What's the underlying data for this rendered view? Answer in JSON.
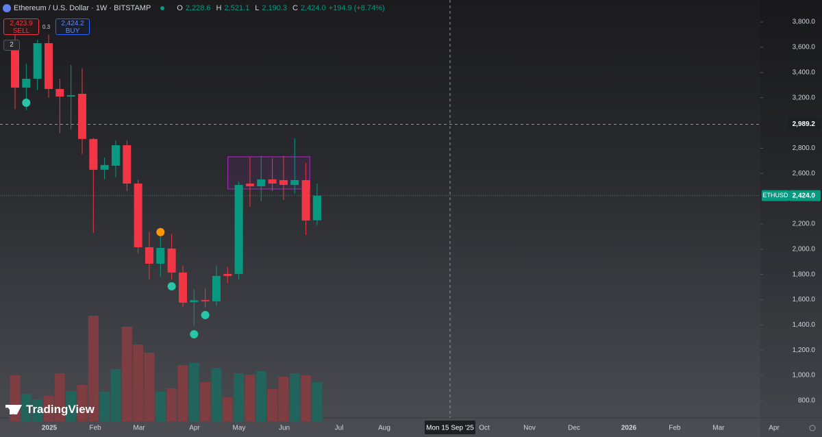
{
  "header": {
    "symbol": "Ethereum / U.S. Dollar · 1W · BITSTAMP",
    "ohlc": [
      {
        "key": "O",
        "value": "2,228.6"
      },
      {
        "key": "H",
        "value": "2,521.1"
      },
      {
        "key": "L",
        "value": "2,190.3"
      },
      {
        "key": "C",
        "value": "2,424.0"
      }
    ],
    "change": "+194.9 (+8.74%)"
  },
  "trade": {
    "sell_price": "2,423.9",
    "sell": "SELL",
    "spread": "0.3",
    "buy_price": "2,424.2",
    "buy": "BUY"
  },
  "indicator_toggle": "2",
  "brand": "TradingView",
  "chart_data": {
    "type": "candlestick",
    "series": {
      "name": "ETHUSD",
      "up_color": "#089981",
      "down_color": "#f23645",
      "open": [
        3621,
        3280,
        3350,
        3632,
        3269,
        3210,
        3231,
        2873,
        2629,
        2661,
        2824,
        2520,
        2015,
        1885,
        2005,
        1815,
        1580,
        1597,
        1587,
        1804,
        1804,
        2520,
        2498,
        2553,
        2547,
        2509,
        2547,
        2228.6
      ],
      "high": [
        3760,
        3470,
        3660,
        3700,
        3350,
        3460,
        3432,
        2880,
        2726,
        2862,
        2862,
        2550,
        2140,
        2100,
        2120,
        1870,
        1684,
        1690,
        1870,
        1858,
        2535,
        2726,
        2740,
        2720,
        2740,
        2878,
        2683,
        2521.1
      ],
      "low": [
        3110,
        3100,
        3260,
        3200,
        2920,
        2950,
        2753,
        2129,
        2553,
        2570,
        2460,
        1967,
        1760,
        1780,
        1760,
        1543,
        1391,
        1538,
        1550,
        1733,
        1760,
        2335,
        2380,
        2460,
        2390,
        2440,
        2113,
        2190.3
      ],
      "close": [
        3280,
        3350,
        3632,
        3269,
        3209,
        3220,
        2873,
        2629,
        2667,
        2824,
        2520,
        2015,
        1885,
        2010,
        1815,
        1576,
        1595,
        1587,
        1788,
        1788,
        2509,
        2498,
        2553,
        2520,
        2509,
        2547,
        2227,
        2424
      ]
    },
    "volume": {
      "up_color": "#22635c",
      "down_color": "#7e3d40",
      "ylim": [
        0,
        160
      ],
      "values": [
        67,
        40,
        32,
        37,
        70,
        44,
        53,
        154,
        43,
        76,
        138,
        112,
        100,
        43,
        48,
        82,
        85,
        57,
        78,
        35,
        70,
        68,
        73,
        47,
        65,
        70,
        67,
        57
      ]
    },
    "markers": [
      {
        "color": "#26c6a6",
        "values": [
          null,
          3160,
          null,
          null,
          null,
          null,
          null,
          null,
          null,
          null,
          null,
          null,
          null,
          null,
          1706,
          null,
          1326,
          1478,
          null,
          null,
          null,
          null,
          null,
          null,
          null,
          null,
          null,
          null
        ]
      },
      {
        "color": "#ff9800",
        "values": [
          null,
          null,
          null,
          null,
          null,
          null,
          null,
          null,
          null,
          null,
          null,
          null,
          null,
          2135,
          null,
          null,
          null,
          null,
          null,
          null,
          null,
          null,
          null,
          null,
          null,
          null,
          null,
          null
        ]
      }
    ],
    "range_box": {
      "high": 2732,
      "low": 2477,
      "color": "#9c27b0"
    },
    "ylim": [
      664,
      3974
    ],
    "yticks": [
      {
        "value": 3800,
        "label": "3,800.0"
      },
      {
        "value": 3600,
        "label": "3,600.0"
      },
      {
        "value": 3400,
        "label": "3,400.0"
      },
      {
        "value": 3200,
        "label": "3,200.0"
      },
      {
        "value": 2800,
        "label": "2,800.0"
      },
      {
        "value": 2600,
        "label": "2,600.0"
      },
      {
        "value": 2200,
        "label": "2,200.0"
      },
      {
        "value": 2000,
        "label": "2,000.0"
      },
      {
        "value": 1800,
        "label": "1,800.0"
      },
      {
        "value": 1600,
        "label": "1,600.0"
      },
      {
        "value": 1400,
        "label": "1,400.0"
      },
      {
        "value": 1200,
        "label": "1,200.0"
      },
      {
        "value": 1000,
        "label": "1,000.0"
      },
      {
        "value": 800,
        "label": "800.0"
      }
    ],
    "xlabels": [
      "2025",
      "Feb",
      "Mar",
      "Apr",
      "May",
      "Jun",
      "Jul",
      "Aug",
      "Oct",
      "Nov",
      "Dec",
      "2026",
      "Feb",
      "Mar",
      "Apr"
    ],
    "price_line": {
      "name": "ETHUSD",
      "value": 2424,
      "label": "2,424.0",
      "color": "#089981"
    },
    "crosshair": {
      "price": {
        "value": 2989.2,
        "label": "2,989.2"
      },
      "date": "Mon 15 Sep '25"
    }
  }
}
